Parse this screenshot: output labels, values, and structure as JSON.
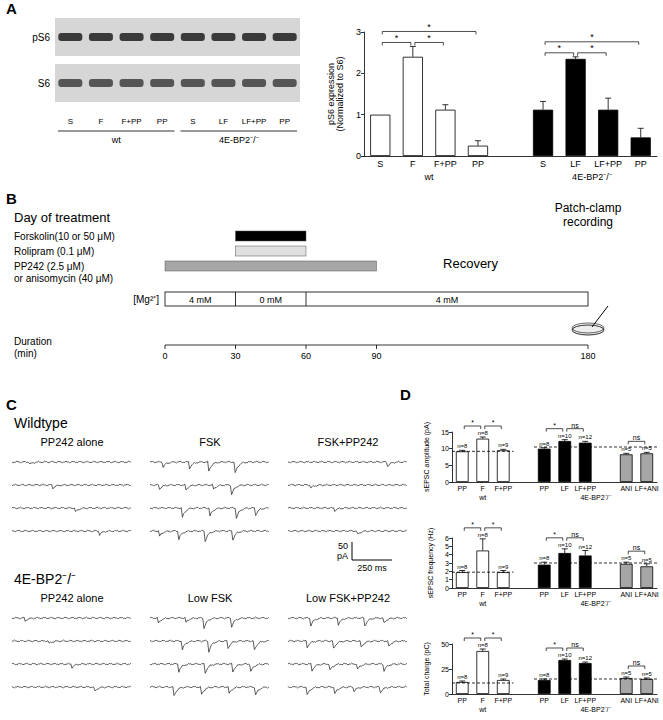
{
  "panels": {
    "A": {
      "letter": "A",
      "blot": {
        "rows": [
          "pS6",
          "S6"
        ],
        "lanes": [
          "S",
          "F",
          "F+PP",
          "PP",
          "S",
          "LF",
          "LF+PP",
          "PP"
        ],
        "groups": [
          {
            "label": "wt",
            "from": 0,
            "to": 3
          },
          {
            "label": "4E-BP2⁻/⁻",
            "from": 4,
            "to": 7
          }
        ]
      }
    },
    "B": {
      "letter": "B",
      "heading": "Day of treatment",
      "treatments": [
        {
          "label": "Forskolin(10 or 50 μM)",
          "start": 30,
          "end": 60,
          "color": "#000000"
        },
        {
          "label": "Rolipram (0.1 μM)",
          "start": 30,
          "end": 60,
          "color": "#e0e0e0"
        },
        {
          "label": "PP242 (2.5 μM)\nor anisomycin (40 μM)",
          "start": 0,
          "end": 90,
          "color": "#a6a6a6"
        }
      ],
      "mg": {
        "label": "[Mg²⁺]",
        "segments": [
          {
            "label": "4 mM",
            "start": 0,
            "end": 30
          },
          {
            "label": "0 mM",
            "start": 30,
            "end": 60
          },
          {
            "label": "4 mM",
            "start": 60,
            "end": 180
          }
        ]
      },
      "recovery": "Recovery",
      "recording": "Patch-clamp\nrecording",
      "duration": "Duration\n(min)",
      "ticks": [
        0,
        30,
        60,
        90,
        180
      ]
    },
    "C": {
      "letter": "C",
      "rows": [
        {
          "title": "Wildtype",
          "columns": [
            "PP242 alone",
            "FSK",
            "FSK+PP242"
          ]
        },
        {
          "title": "4E-BP2⁻/⁻",
          "columns": [
            "PP242 alone",
            "Low FSK",
            "Low FSK+PP242"
          ]
        }
      ],
      "scale_bar": {
        "y": "50\npA",
        "x": "250 ms"
      }
    },
    "D": {
      "letter": "D"
    }
  },
  "chart_data": [
    {
      "type": "bar",
      "y_label": "pS6 expression\n(Normalized to S6)",
      "categories": [
        "S",
        "F",
        "F+PP",
        "PP",
        null,
        "S",
        "LF",
        "LF+PP",
        "PP"
      ],
      "values": [
        1,
        2.4,
        1.12,
        0.25,
        null,
        1.12,
        2.35,
        1.12,
        0.45
      ],
      "errors": [
        0,
        0.25,
        0.12,
        0.12,
        null,
        0.2,
        0.05,
        0.28,
        0.22
      ],
      "colors": [
        "#ffffff",
        "#ffffff",
        "#ffffff",
        "#ffffff",
        null,
        "#000000",
        "#000000",
        "#000000",
        "#000000"
      ],
      "ylim": [
        0,
        3
      ],
      "yticks": [
        0,
        1,
        2,
        3
      ],
      "grid": false,
      "groups": [
        {
          "label": "wt",
          "from": 0,
          "to": 3
        },
        {
          "label": "4E-BP2⁻/⁻",
          "from": 5,
          "to": 8
        }
      ],
      "significance": [
        {
          "from": 0,
          "to": 1,
          "label": "*"
        },
        {
          "from": 1,
          "to": 2,
          "label": "*"
        },
        {
          "from": 0,
          "to": 3,
          "label": "*"
        },
        {
          "from": 5,
          "to": 6,
          "label": "*"
        },
        {
          "from": 6,
          "to": 7,
          "label": "*"
        },
        {
          "from": 5,
          "to": 8,
          "label": "*"
        }
      ]
    },
    {
      "type": "bar",
      "y_label": "sEPSC amplitude (pA)",
      "categories": [
        "PP",
        "F",
        "F+PP",
        null,
        "PP",
        "LF",
        "LF+PP",
        null,
        "ANI",
        "LF+ANI"
      ],
      "values": [
        9.2,
        13.0,
        9.5,
        null,
        10.0,
        12.3,
        11.8,
        null,
        8.3,
        8.6
      ],
      "errors": [
        0.3,
        0.5,
        0.3,
        null,
        0.3,
        0.4,
        0.4,
        null,
        0.3,
        0.3
      ],
      "colors": [
        "#ffffff",
        "#ffffff",
        "#ffffff",
        null,
        "#000000",
        "#000000",
        "#000000",
        null,
        "#a6a6a6",
        "#a6a6a6"
      ],
      "n_labels": [
        "n=8",
        "n=8",
        "n=9",
        null,
        "n=8",
        "n=10",
        "n=12",
        null,
        "n=5",
        "n=5"
      ],
      "ylim": [
        0,
        15
      ],
      "yticks": [
        0,
        5,
        10,
        15
      ],
      "grid": false,
      "reference_lines": [
        {
          "value": 9.2,
          "from": 0,
          "to": 2
        },
        {
          "value": 10.5,
          "from": 4,
          "to": 9
        }
      ],
      "groups": [
        {
          "label": "wt",
          "from": 0,
          "to": 2
        },
        {
          "label": "4E-BP2⁻/⁻",
          "from": 4,
          "to": 9
        }
      ],
      "significance": [
        {
          "from": 0,
          "to": 1,
          "label": "*"
        },
        {
          "from": 1,
          "to": 2,
          "label": "*"
        },
        {
          "from": 4,
          "to": 5,
          "label": "*"
        },
        {
          "from": 5,
          "to": 6,
          "label": "ns"
        },
        {
          "from": 8,
          "to": 9,
          "label": "ns"
        }
      ]
    },
    {
      "type": "bar",
      "y_label": "sEPSC frequency (Hz)",
      "categories": [
        "PP",
        "F",
        "F+PP",
        null,
        "PP",
        "LF",
        "LF+PP",
        null,
        "ANI",
        "LF+ANI"
      ],
      "values": [
        1.9,
        4.5,
        1.9,
        null,
        2.8,
        4.2,
        3.9,
        null,
        2.9,
        2.6
      ],
      "errors": [
        0.2,
        1.4,
        0.2,
        null,
        0.3,
        0.5,
        0.6,
        null,
        0.2,
        0.3
      ],
      "colors": [
        "#ffffff",
        "#ffffff",
        "#ffffff",
        null,
        "#000000",
        "#000000",
        "#000000",
        null,
        "#a6a6a6",
        "#a6a6a6"
      ],
      "n_labels": [
        "n=8",
        "n=8",
        "n=9",
        null,
        "n=8",
        "n=10",
        "n=12",
        null,
        "n=5",
        "n=5"
      ],
      "ylim": [
        0,
        6
      ],
      "yticks": [
        0,
        1,
        2,
        3,
        4,
        5,
        6
      ],
      "grid": false,
      "reference_lines": [
        {
          "value": 1.9,
          "from": 0,
          "to": 2
        },
        {
          "value": 3.0,
          "from": 4,
          "to": 9
        }
      ],
      "groups": [
        {
          "label": "wt",
          "from": 0,
          "to": 2
        },
        {
          "label": "4E-BP2⁻/⁻",
          "from": 4,
          "to": 9
        }
      ],
      "significance": [
        {
          "from": 0,
          "to": 1,
          "label": "*"
        },
        {
          "from": 1,
          "to": 2,
          "label": "*"
        },
        {
          "from": 4,
          "to": 5,
          "label": "*"
        },
        {
          "from": 5,
          "to": 6,
          "label": "ns"
        },
        {
          "from": 8,
          "to": 9,
          "label": "ns"
        }
      ]
    },
    {
      "type": "bar",
      "y_label": "Total charge (pC)",
      "categories": [
        "PP",
        "F",
        "F+PP",
        null,
        "PP",
        "LF",
        "LF+PP",
        null,
        "ANI",
        "LF+ANI"
      ],
      "values": [
        12,
        43,
        14,
        null,
        14,
        34,
        31,
        null,
        16,
        15
      ],
      "errors": [
        1,
        2,
        1,
        null,
        1,
        1,
        1,
        null,
        1,
        1
      ],
      "colors": [
        "#ffffff",
        "#ffffff",
        "#ffffff",
        null,
        "#000000",
        "#000000",
        "#000000",
        null,
        "#a6a6a6",
        "#a6a6a6"
      ],
      "n_labels": [
        "n=8",
        "n=8",
        "n=9",
        null,
        "n=8",
        "n=10",
        "n=12",
        null,
        "n=5",
        "n=5"
      ],
      "ylim": [
        0,
        50
      ],
      "yticks": [
        0,
        25,
        50
      ],
      "grid": false,
      "reference_lines": [
        {
          "value": 11,
          "from": 0,
          "to": 2
        },
        {
          "value": 15,
          "from": 4,
          "to": 9
        }
      ],
      "groups": [
        {
          "label": "wt",
          "from": 0,
          "to": 2
        },
        {
          "label": "4E-BP2⁻/⁻",
          "from": 4,
          "to": 9
        }
      ],
      "significance": [
        {
          "from": 0,
          "to": 1,
          "label": "*"
        },
        {
          "from": 1,
          "to": 2,
          "label": "*"
        },
        {
          "from": 4,
          "to": 5,
          "label": "*"
        },
        {
          "from": 5,
          "to": 6,
          "label": "ns"
        },
        {
          "from": 8,
          "to": 9,
          "label": "ns"
        }
      ]
    }
  ]
}
